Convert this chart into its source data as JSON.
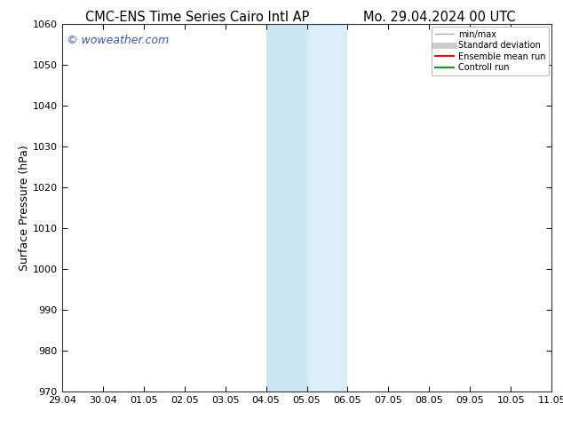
{
  "title_left": "CMC-ENS Time Series Cairo Intl AP",
  "title_right": "Mo. 29.04.2024 00 UTC",
  "ylabel": "Surface Pressure (hPa)",
  "ylim": [
    970,
    1060
  ],
  "yticks": [
    970,
    980,
    990,
    1000,
    1010,
    1020,
    1030,
    1040,
    1050,
    1060
  ],
  "xtick_labels": [
    "29.04",
    "30.04",
    "01.05",
    "02.05",
    "03.05",
    "04.05",
    "05.05",
    "06.05",
    "07.05",
    "08.05",
    "09.05",
    "10.05",
    "11.05"
  ],
  "shading1_color": "#cce5f5",
  "shading2_color": "#daeefa",
  "watermark_text": "© woweather.com",
  "watermark_color": "#3355cc",
  "legend_items": [
    {
      "label": "min/max",
      "color": "#aaaaaa",
      "lw": 1.0,
      "style": "solid"
    },
    {
      "label": "Standard deviation",
      "color": "#cccccc",
      "lw": 5,
      "style": "solid"
    },
    {
      "label": "Ensemble mean run",
      "color": "#ff0000",
      "lw": 1.5,
      "style": "solid"
    },
    {
      "label": "Controll run",
      "color": "#00aa00",
      "lw": 1.5,
      "style": "solid"
    }
  ],
  "bg_color": "#ffffff",
  "plot_bg_color": "#ffffff",
  "title_fontsize": 10.5,
  "tick_fontsize": 8,
  "ylabel_fontsize": 9,
  "watermark_fontsize": 9
}
